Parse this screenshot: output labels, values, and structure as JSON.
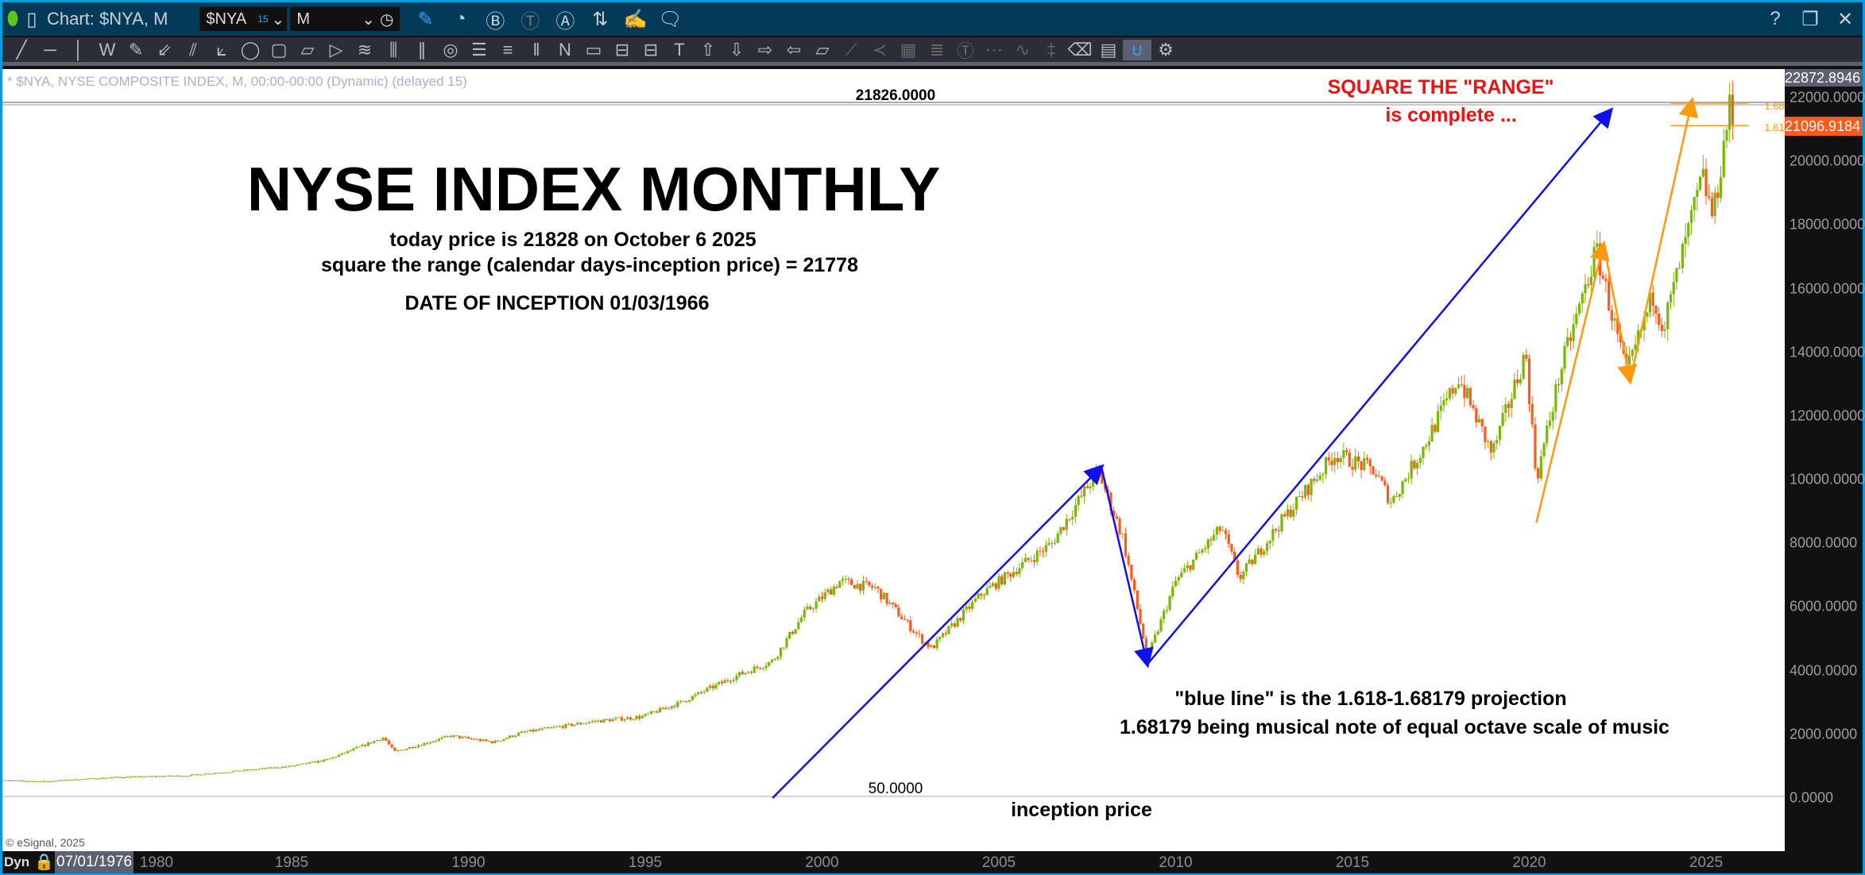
{
  "titlebar": {
    "title": "Chart: $NYA, M",
    "symbol": "$NYA",
    "symbol_sup": "15",
    "interval": "M",
    "icons": [
      "link-green-icon",
      "link-grey-icon",
      "pencil-icon",
      "study-icon",
      "b-circle-icon",
      "t-circle-icon",
      "a-circle-icon",
      "arrows-icon",
      "note-edit-icon",
      "comment-icon"
    ],
    "right_icons": [
      "?",
      "restore-icon",
      "close-icon"
    ]
  },
  "toolbar": {
    "icons": [
      "line",
      "horizontal-line",
      "vertical-line",
      "zigzag",
      "pencil",
      "fan",
      "pitchfork",
      "gann-fan",
      "ellipse",
      "rectangle",
      "parallelogram",
      "triangle",
      "channel",
      "cycle-lines",
      "parallel-lines",
      "circles",
      "h-lines",
      "h-lines-2",
      "v-lines",
      "n-wave",
      "box",
      "box-2",
      "box-3",
      "text",
      "arrow-up",
      "arrow-down",
      "arrow-right",
      "arrow-left",
      "callout",
      "fib-fan",
      "speed-lines",
      "grid",
      "mob",
      "tj",
      "pti",
      "pattern",
      "scale",
      "eraser",
      "comment",
      "magnet",
      "settings"
    ]
  },
  "info": "* $NYA, NYSE COMPOSITE INDEX, M, 00:00-00:00 (Dynamic) (delayed 15)",
  "watermark": "© eSignal, 2025",
  "timeaxis": {
    "dyn": "Dyn",
    "cursor_date": "07/01/1976",
    "years": [
      "1980",
      "1985",
      "1990",
      "1995",
      "2000",
      "2005",
      "2010",
      "2015",
      "2020",
      "2025"
    ]
  },
  "price_axis": {
    "top_label": "22872.8946",
    "last_label": "21096.9184",
    "last_color": "#ff5a1a",
    "ticks": [
      "0.0000",
      "2000.0000",
      "4000.0000",
      "6000.0000",
      "8000.0000",
      "10000.0000",
      "12000.0000",
      "14000.0000",
      "16000.0000",
      "18000.0000",
      "20000.0000",
      "22000.0000"
    ]
  },
  "annotations": {
    "title": "NYSE INDEX MONTHLY",
    "line1": "today price is 21828 on October 6 2025",
    "line2": "square the range (calendar days-inception price) = 21778",
    "line3": "DATE OF INCEPTION 01/03/1966",
    "red1": "SQUARE THE \"RANGE\"",
    "red2": "is complete ...",
    "blue1": "\"blue line\" is the 1.618-1.68179 projection",
    "blue2": "1.68179 being musical note of equal octave scale of music",
    "inception": "inception price",
    "level_top": "21826.0000",
    "level_bottom": "50.0000",
    "fib1": "1.68",
    "fib2": "1.61"
  },
  "chart_data": {
    "type": "candlestick",
    "interval": "monthly",
    "ylim": [
      0,
      22872.8946
    ],
    "xlim": [
      1976.5,
      2026.6
    ],
    "y_ticks": [
      0,
      2000,
      4000,
      6000,
      8000,
      10000,
      12000,
      14000,
      16000,
      18000,
      20000,
      22000
    ],
    "x_ticks": [
      1980,
      1985,
      1990,
      1995,
      2000,
      2005,
      2010,
      2015,
      2020,
      2025
    ],
    "up_color": "#7ab800",
    "down_color": "#ff5a1a",
    "approx_closes": [
      [
        1976.5,
        560
      ],
      [
        1978,
        520
      ],
      [
        1980,
        650
      ],
      [
        1982,
        700
      ],
      [
        1984,
        900
      ],
      [
        1985,
        1000
      ],
      [
        1986,
        1200
      ],
      [
        1987.6,
        1900
      ],
      [
        1987.9,
        1450
      ],
      [
        1989.5,
        1950
      ],
      [
        1990.7,
        1750
      ],
      [
        1991.5,
        2050
      ],
      [
        1993.5,
        2400
      ],
      [
        1994.9,
        2550
      ],
      [
        1996,
        3000
      ],
      [
        1997.5,
        3800
      ],
      [
        1998.6,
        4300
      ],
      [
        1999.5,
        5800
      ],
      [
        2000.5,
        6800
      ],
      [
        2001.5,
        6600
      ],
      [
        2002.8,
        5000
      ],
      [
        2003.1,
        4700
      ],
      [
        2004.5,
        6400
      ],
      [
        2005.5,
        7200
      ],
      [
        2006.5,
        8000
      ],
      [
        2007.8,
        10300
      ],
      [
        2008.5,
        8200
      ],
      [
        2009.2,
        4400
      ],
      [
        2010.0,
        6800
      ],
      [
        2011.3,
        8500
      ],
      [
        2011.8,
        6900
      ],
      [
        2013.0,
        8700
      ],
      [
        2014.5,
        10800
      ],
      [
        2015.6,
        10300
      ],
      [
        2016.1,
        9300
      ],
      [
        2017.0,
        11000
      ],
      [
        2018.0,
        13200
      ],
      [
        2018.95,
        10800
      ],
      [
        2019.9,
        14000
      ],
      [
        2020.2,
        10000
      ],
      [
        2020.9,
        13500
      ],
      [
        2021.9,
        17200
      ],
      [
        2022.75,
        13300
      ],
      [
        2023.5,
        15800
      ],
      [
        2023.8,
        14800
      ],
      [
        2024.9,
        19500
      ],
      [
        2025.2,
        18200
      ],
      [
        2025.6,
        21300
      ],
      [
        2025.7,
        21828
      ],
      [
        2025.76,
        21097
      ]
    ],
    "levels": [
      21826,
      50
    ],
    "blue_lines": [
      [
        [
          1998.6,
          0
        ],
        [
          2007.9,
          10400
        ]
      ],
      [
        [
          2007.9,
          10400
        ],
        [
          2009.2,
          4200
        ]
      ],
      [
        [
          2009.2,
          4200
        ],
        [
          2022.3,
          21600
        ]
      ]
    ],
    "orange_lines": [
      [
        [
          2020.2,
          8650
        ],
        [
          2022.1,
          17400
        ]
      ],
      [
        [
          2022.1,
          17400
        ],
        [
          2022.85,
          13100
        ]
      ],
      [
        [
          2022.85,
          13100
        ],
        [
          2024.6,
          21900
        ]
      ]
    ],
    "fib_levels": [
      21826,
      21120
    ]
  }
}
